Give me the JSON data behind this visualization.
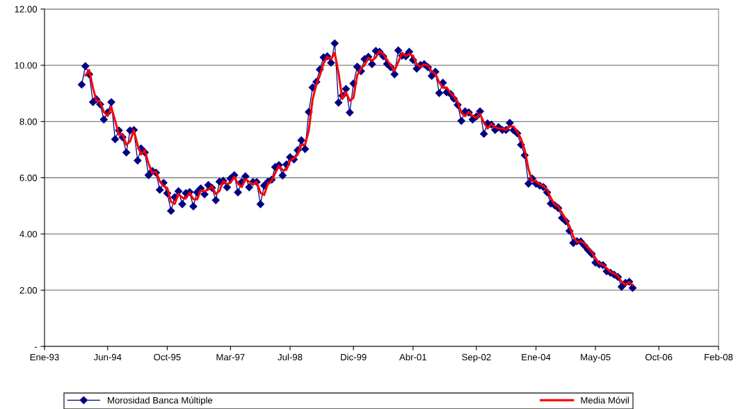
{
  "chart_data": {
    "type": "line",
    "x": [
      "1993-11",
      "1993-12",
      "1994-01",
      "1994-02",
      "1994-03",
      "1994-04",
      "1994-05",
      "1994-06",
      "1994-07",
      "1994-08",
      "1994-09",
      "1994-10",
      "1994-11",
      "1994-12",
      "1995-01",
      "1995-02",
      "1995-03",
      "1995-04",
      "1995-05",
      "1995-06",
      "1995-07",
      "1995-08",
      "1995-09",
      "1995-10",
      "1995-11",
      "1995-12",
      "1996-01",
      "1996-02",
      "1996-03",
      "1996-04",
      "1996-05",
      "1996-06",
      "1996-07",
      "1996-08",
      "1996-09",
      "1996-10",
      "1996-11",
      "1996-12",
      "1997-01",
      "1997-02",
      "1997-03",
      "1997-04",
      "1997-05",
      "1997-06",
      "1997-07",
      "1997-08",
      "1997-09",
      "1997-10",
      "1997-11",
      "1997-12",
      "1998-01",
      "1998-02",
      "1998-03",
      "1998-04",
      "1998-05",
      "1998-06",
      "1998-07",
      "1998-08",
      "1998-09",
      "1998-10",
      "1998-11",
      "1998-12",
      "1999-01",
      "1999-02",
      "1999-03",
      "1999-04",
      "1999-05",
      "1999-06",
      "1999-07",
      "1999-08",
      "1999-09",
      "1999-10",
      "1999-11",
      "1999-12",
      "2000-01",
      "2000-02",
      "2000-03",
      "2000-04",
      "2000-05",
      "2000-06",
      "2000-07",
      "2000-08",
      "2000-09",
      "2000-10",
      "2000-11",
      "2000-12",
      "2001-01",
      "2001-02",
      "2001-03",
      "2001-04",
      "2001-05",
      "2001-06",
      "2001-07",
      "2001-08",
      "2001-09",
      "2001-10",
      "2001-11",
      "2001-12",
      "2002-01",
      "2002-02",
      "2002-03",
      "2002-04",
      "2002-05",
      "2002-06",
      "2002-07",
      "2002-08",
      "2002-09",
      "2002-10",
      "2002-11",
      "2002-12",
      "2003-01",
      "2003-02",
      "2003-03",
      "2003-04",
      "2003-05",
      "2003-06",
      "2003-07",
      "2003-08",
      "2003-09",
      "2003-10",
      "2003-11",
      "2003-12",
      "2004-01",
      "2004-02",
      "2004-03",
      "2004-04",
      "2004-05",
      "2004-06",
      "2004-07",
      "2004-08",
      "2004-09",
      "2004-10",
      "2004-11",
      "2004-12",
      "2005-01",
      "2005-02",
      "2005-03",
      "2005-04",
      "2005-05",
      "2005-06",
      "2005-07",
      "2005-08",
      "2005-09",
      "2005-10",
      "2005-11",
      "2005-12",
      "2006-01",
      "2006-02",
      "2006-03"
    ],
    "series": [
      {
        "name": "Morosidad Banca Múltiple",
        "color": "#000080",
        "marker": "diamond",
        "values": [
          9.31,
          9.97,
          9.68,
          8.69,
          8.79,
          8.61,
          8.07,
          8.32,
          8.69,
          7.37,
          7.68,
          7.44,
          6.9,
          7.68,
          7.7,
          6.61,
          7.04,
          6.9,
          6.09,
          6.24,
          6.18,
          5.57,
          5.82,
          5.45,
          4.82,
          5.31,
          5.52,
          5.06,
          5.45,
          5.49,
          4.98,
          5.48,
          5.62,
          5.41,
          5.74,
          5.64,
          5.2,
          5.86,
          5.89,
          5.66,
          5.97,
          6.09,
          5.48,
          5.85,
          6.05,
          5.66,
          5.85,
          5.85,
          5.06,
          5.72,
          5.86,
          5.93,
          6.38,
          6.45,
          6.08,
          6.47,
          6.73,
          6.65,
          6.98,
          7.33,
          7.02,
          8.34,
          9.21,
          9.41,
          9.85,
          10.28,
          10.32,
          10.09,
          10.78,
          8.67,
          8.92,
          9.16,
          8.32,
          9.35,
          9.95,
          9.79,
          10.22,
          10.3,
          10.04,
          10.51,
          10.48,
          10.32,
          10.05,
          9.93,
          9.68,
          10.53,
          10.34,
          10.32,
          10.48,
          10.19,
          9.88,
          10.01,
          10.04,
          9.93,
          9.62,
          9.77,
          9.01,
          9.38,
          9.04,
          8.98,
          8.81,
          8.59,
          8.02,
          8.36,
          8.32,
          8.07,
          8.18,
          8.36,
          7.56,
          7.93,
          7.89,
          7.7,
          7.8,
          7.7,
          7.7,
          7.95,
          7.69,
          7.58,
          7.17,
          6.8,
          5.79,
          5.97,
          5.79,
          5.72,
          5.67,
          5.48,
          5.08,
          5.02,
          4.92,
          4.57,
          4.45,
          4.11,
          3.68,
          3.74,
          3.73,
          3.58,
          3.43,
          3.29,
          2.98,
          2.92,
          2.89,
          2.67,
          2.62,
          2.55,
          2.47,
          2.12,
          2.26,
          2.3,
          2.08
        ]
      },
      {
        "name": "Media Móvil",
        "color": "#ff0000",
        "marker": "none",
        "values": [
          null,
          9.64,
          9.83,
          9.19,
          8.74,
          8.7,
          8.34,
          8.2,
          8.51,
          8.03,
          7.53,
          7.56,
          7.17,
          7.29,
          7.69,
          7.16,
          6.83,
          6.97,
          6.5,
          6.17,
          6.21,
          5.88,
          5.7,
          5.64,
          5.14,
          5.07,
          5.42,
          5.29,
          5.26,
          5.47,
          5.24,
          5.23,
          5.55,
          5.52,
          5.58,
          5.69,
          5.42,
          5.53,
          5.88,
          5.78,
          5.82,
          6.03,
          5.79,
          5.67,
          5.95,
          5.86,
          5.76,
          5.85,
          5.46,
          5.39,
          5.79,
          5.9,
          6.16,
          6.42,
          6.27,
          6.28,
          6.6,
          6.69,
          6.82,
          7.16,
          7.18,
          7.68,
          8.78,
          9.31,
          9.63,
          10.07,
          10.3,
          10.21,
          10.44,
          9.73,
          8.8,
          9.04,
          8.74,
          8.84,
          9.65,
          9.87,
          10.01,
          10.26,
          10.17,
          10.28,
          10.5,
          10.4,
          10.19,
          9.99,
          9.81,
          10.11,
          10.44,
          10.33,
          10.4,
          10.34,
          10.04,
          9.95,
          10.03,
          9.99,
          9.78,
          9.7,
          9.39,
          9.2,
          9.21,
          9.01,
          8.9,
          8.7,
          8.31,
          8.19,
          8.34,
          8.2,
          8.13,
          8.27,
          7.96,
          7.75,
          7.91,
          7.8,
          7.75,
          7.75,
          7.7,
          7.83,
          7.82,
          7.64,
          7.38,
          6.99,
          6.3,
          5.88,
          5.88,
          5.76,
          5.7,
          5.58,
          5.28,
          5.05,
          4.97,
          4.75,
          4.51,
          4.28,
          3.9,
          3.71,
          3.74,
          3.66,
          3.51,
          3.36,
          3.14,
          2.95,
          2.91,
          2.78,
          2.65,
          2.59,
          2.51,
          2.3,
          2.19,
          2.28,
          2.19
        ]
      }
    ],
    "xlim": [
      "1993-01",
      "2008-02"
    ],
    "xticks": [
      {
        "value": "1993-01",
        "label": "Ene-93"
      },
      {
        "value": "1994-06",
        "label": "Jun-94"
      },
      {
        "value": "1995-10",
        "label": "Oct-95"
      },
      {
        "value": "1997-03",
        "label": "Mar-97"
      },
      {
        "value": "1998-07",
        "label": "Jul-98"
      },
      {
        "value": "1999-12",
        "label": "Dic-99"
      },
      {
        "value": "2001-04",
        "label": "Abr-01"
      },
      {
        "value": "2002-09",
        "label": "Sep-02"
      },
      {
        "value": "2004-01",
        "label": "Ene-04"
      },
      {
        "value": "2005-05",
        "label": "May-05"
      },
      {
        "value": "2006-10",
        "label": "Oct-06"
      },
      {
        "value": "2008-02",
        "label": "Feb-08"
      }
    ],
    "ylim": [
      0,
      12
    ],
    "yticks": [
      {
        "value": 0,
        "label": "-"
      },
      {
        "value": 2,
        "label": "2.00"
      },
      {
        "value": 4,
        "label": "4.00"
      },
      {
        "value": 6,
        "label": "6.00"
      },
      {
        "value": 8,
        "label": "8.00"
      },
      {
        "value": 10,
        "label": "10.00"
      },
      {
        "value": 12,
        "label": "12.00"
      }
    ],
    "grid": "y",
    "legend": "bottom"
  }
}
